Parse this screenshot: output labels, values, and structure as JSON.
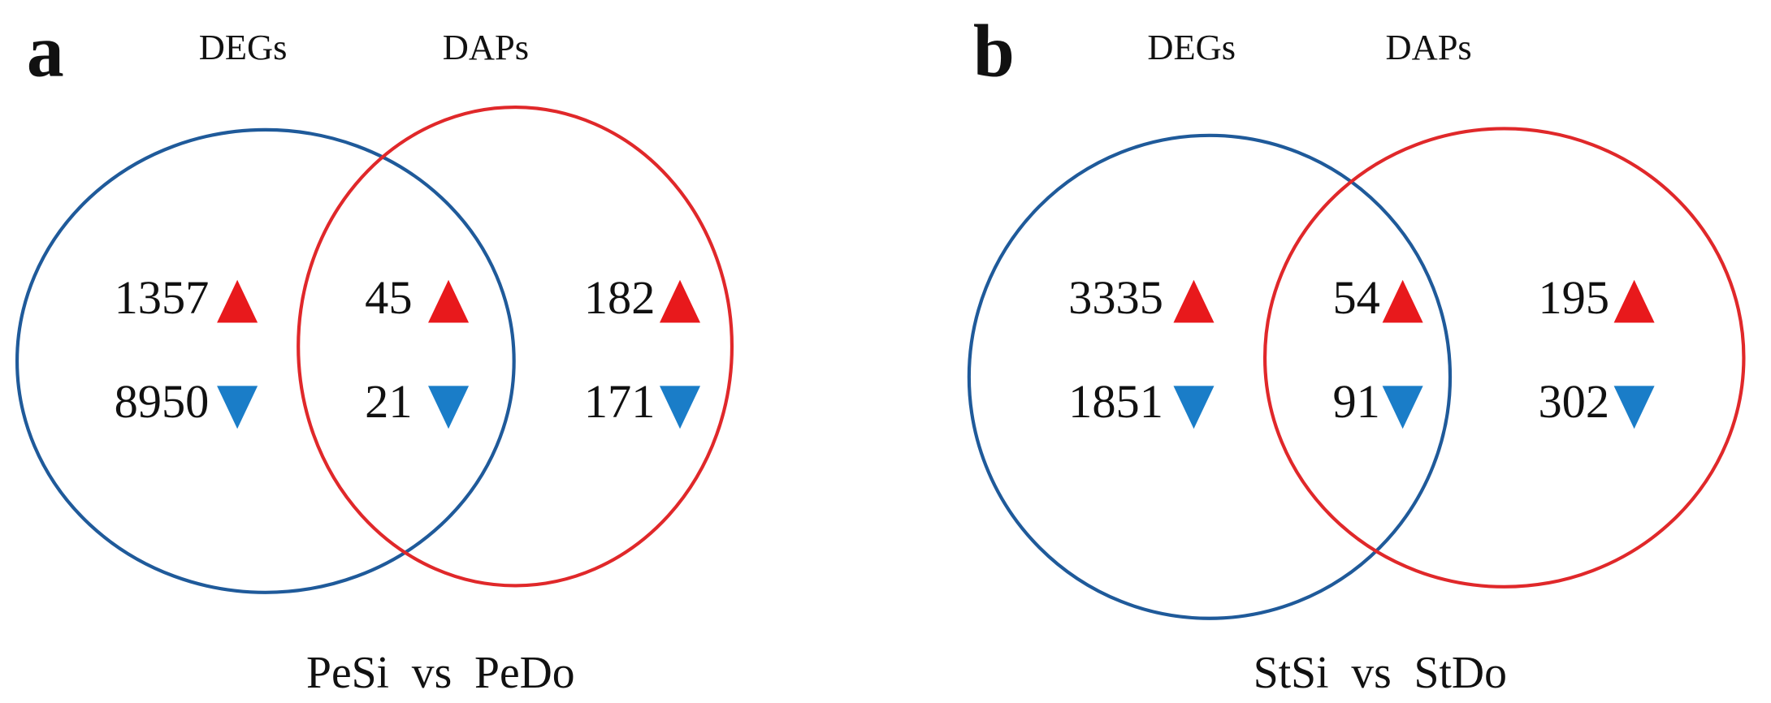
{
  "panels": [
    {
      "letter": "a",
      "sets": [
        "DEGs",
        "DAPs"
      ],
      "regions": [
        {
          "up": 1357,
          "down": 8950
        },
        {
          "up": 45,
          "down": 21
        },
        {
          "up": 182,
          "down": 171
        }
      ],
      "comparison": "PeSi  vs  PeDo"
    },
    {
      "letter": "b",
      "sets": [
        "DEGs",
        "DAPs"
      ],
      "regions": [
        {
          "up": 3335,
          "down": 1851
        },
        {
          "up": 54,
          "down": 91
        },
        {
          "up": 195,
          "down": 302
        }
      ],
      "comparison": "StSi  vs  StDo"
    }
  ]
}
